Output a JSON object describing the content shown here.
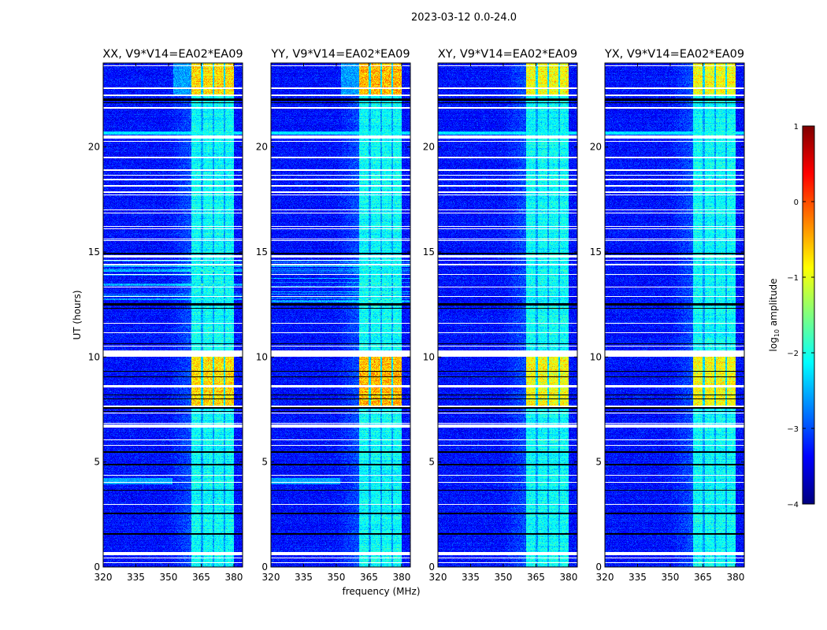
{
  "chart_data": {
    "type": "heatmap",
    "title": "2023-03-12 0.0-24.0",
    "xlabel": "frequency (MHz)",
    "ylabel": "UT (hours)",
    "xlim": [
      320,
      384
    ],
    "ylim": [
      0,
      24
    ],
    "xticks": [
      "320",
      "335",
      "350",
      "365",
      "380"
    ],
    "xtick_values": [
      320,
      335,
      350,
      365,
      380
    ],
    "yticks": [
      "0",
      "5",
      "10",
      "15",
      "20"
    ],
    "ytick_values": [
      0,
      5,
      10,
      15,
      20
    ],
    "panels": [
      {
        "title": "XX, V9*V14=EA02*EA09",
        "pol": "XX",
        "burst_level": -0.6,
        "streaks": true
      },
      {
        "title": "YY, V9*V14=EA02*EA09",
        "pol": "YY",
        "burst_level": -0.4,
        "streaks": true
      },
      {
        "title": "XY, V9*V14=EA02*EA09",
        "pol": "XY",
        "burst_level": -0.8,
        "streaks": false
      },
      {
        "title": "YX, V9*V14=EA02*EA09",
        "pol": "YX",
        "burst_level": -0.8,
        "streaks": false
      }
    ],
    "colorbar": {
      "label": "log10 amplitude",
      "label_main": "log",
      "label_sub": "10",
      "label_rest": " amplitude",
      "range": [
        -4,
        1
      ],
      "ticks": [
        "−4",
        "−3",
        "−2",
        "−1",
        "0",
        "1"
      ],
      "tick_values": [
        -4,
        -3,
        -2,
        -1,
        0,
        1
      ],
      "colormap": "jet"
    },
    "background_level": -3.3,
    "rfi_level": -2.1,
    "rfi_bands_mhz": [
      [
        360.5,
        365.0
      ],
      [
        365.8,
        370.2
      ],
      [
        370.9,
        375.2
      ],
      [
        376.0,
        380.0
      ]
    ],
    "burst_periods_hours": [
      [
        7.6,
        10.0
      ],
      [
        22.45,
        24.0
      ]
    ],
    "flagged_rows_hours": [
      [
        23.85,
        23.9
      ],
      [
        22.78,
        22.83
      ],
      [
        22.44,
        22.49
      ],
      [
        21.82,
        21.9
      ],
      [
        20.4,
        20.55
      ],
      [
        20.25,
        20.3
      ],
      [
        19.48,
        19.52
      ],
      [
        18.88,
        18.92
      ],
      [
        18.65,
        18.69
      ],
      [
        18.43,
        18.47
      ],
      [
        18.13,
        18.17
      ],
      [
        17.83,
        17.87
      ],
      [
        17.71,
        17.75
      ],
      [
        16.98,
        17.02
      ],
      [
        16.85,
        16.89
      ],
      [
        16.21,
        16.25
      ],
      [
        16.1,
        16.14
      ],
      [
        15.61,
        15.65
      ],
      [
        15.54,
        15.58
      ],
      [
        14.75,
        14.85
      ],
      [
        14.58,
        14.62
      ],
      [
        14.38,
        14.42
      ],
      [
        13.9,
        13.95
      ],
      [
        13.3,
        13.35
      ],
      [
        12.85,
        12.9
      ],
      [
        11.6,
        11.64
      ],
      [
        11.13,
        11.17
      ],
      [
        10.5,
        10.55
      ],
      [
        10.0,
        10.3
      ],
      [
        8.55,
        8.65
      ],
      [
        7.63,
        7.67
      ],
      [
        7.3,
        7.34
      ],
      [
        6.82,
        6.86
      ],
      [
        6.62,
        6.78
      ],
      [
        6.05,
        6.09
      ],
      [
        5.78,
        5.82
      ],
      [
        4.35,
        4.39
      ],
      [
        4.0,
        4.04
      ],
      [
        2.97,
        3.01
      ],
      [
        0.55,
        0.7
      ],
      [
        0.4,
        0.44
      ],
      [
        0.2,
        0.24
      ]
    ],
    "gap_rows_hours": [
      [
        22.2,
        22.32
      ],
      [
        22.08,
        22.14
      ],
      [
        14.9,
        14.95
      ],
      [
        12.45,
        12.55
      ],
      [
        12.3,
        12.34
      ],
      [
        10.6,
        10.66
      ],
      [
        9.3,
        9.34
      ],
      [
        9.05,
        9.09
      ],
      [
        8.18,
        8.22
      ],
      [
        7.98,
        8.04
      ],
      [
        7.55,
        7.6
      ],
      [
        7.4,
        7.44
      ],
      [
        5.45,
        5.5
      ],
      [
        4.85,
        4.9
      ],
      [
        3.62,
        3.68
      ],
      [
        2.53,
        2.58
      ],
      [
        1.52,
        1.62
      ],
      [
        0.17,
        0.21
      ]
    ],
    "grid": false
  }
}
